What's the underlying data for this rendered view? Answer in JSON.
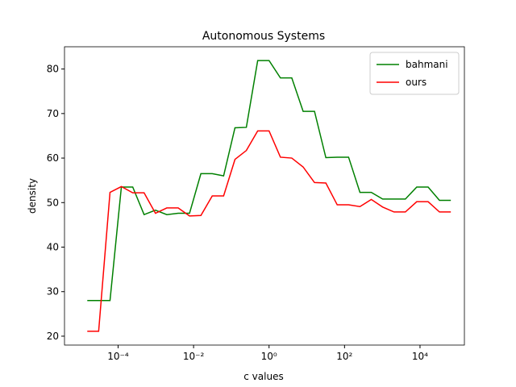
{
  "chart_data": {
    "type": "line",
    "title": "Autonomous Systems",
    "xlabel": "c values",
    "ylabel": "density",
    "xscale": "log",
    "x": [
      1.52587890625e-05,
      3.0517578125e-05,
      6.103515625e-05,
      0.0001220703125,
      0.000244140625,
      0.00048828125,
      0.0009765625,
      0.001953125,
      0.00390625,
      0.0078125,
      0.015625,
      0.03125,
      0.0625,
      0.125,
      0.25,
      0.5,
      1,
      2,
      4,
      8,
      16,
      32,
      64,
      128,
      256,
      512,
      1024,
      2048,
      4096,
      8192,
      16384,
      32768,
      65536
    ],
    "series": [
      {
        "name": "bahmani",
        "color": "#008000",
        "values": [
          28,
          28,
          28,
          53.5,
          53.5,
          47.3,
          48.3,
          47.3,
          47.6,
          47.6,
          56.5,
          56.5,
          56,
          66.8,
          66.9,
          81.9,
          81.9,
          78,
          78,
          70.5,
          70.5,
          60.1,
          60.2,
          60.2,
          52.3,
          52.3,
          50.8,
          50.8,
          50.8,
          53.5,
          53.5,
          50.5,
          50.5
        ]
      },
      {
        "name": "ours",
        "color": "#ff0000",
        "values": [
          21.1,
          21.1,
          52.3,
          53.6,
          52.2,
          52.2,
          47.6,
          48.8,
          48.8,
          47,
          47.1,
          51.5,
          51.5,
          59.7,
          61.7,
          66.1,
          66.1,
          60.2,
          60,
          58,
          54.5,
          54.4,
          49.5,
          49.5,
          49.1,
          50.7,
          49,
          47.9,
          47.9,
          50.2,
          50.2,
          47.9,
          47.9
        ]
      }
    ],
    "xlim": [
      3.8e-06,
      150000
    ],
    "ylim": [
      18,
      85
    ],
    "xticks": [
      {
        "value": 0.0001,
        "label": "10⁻⁴"
      },
      {
        "value": 0.01,
        "label": "10⁻²"
      },
      {
        "value": 1,
        "label": "10⁰"
      },
      {
        "value": 100,
        "label": "10²"
      },
      {
        "value": 10000,
        "label": "10⁴"
      }
    ],
    "yticks": [
      20,
      30,
      40,
      50,
      60,
      70,
      80
    ],
    "legend": "upper right"
  }
}
